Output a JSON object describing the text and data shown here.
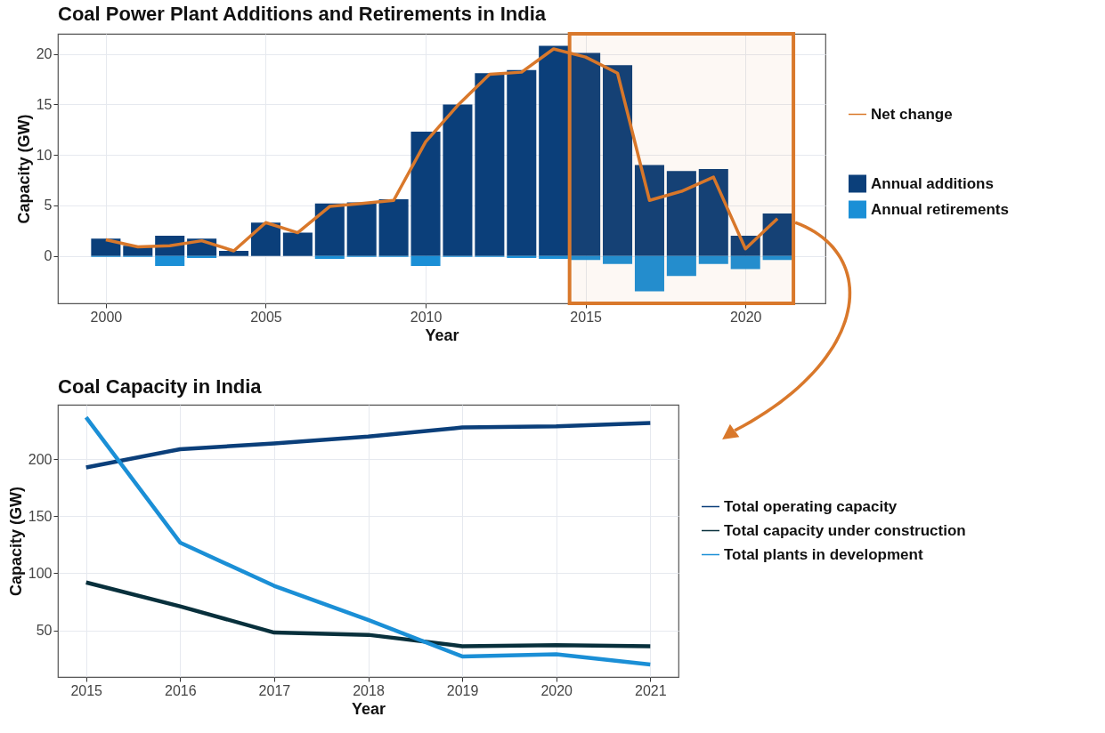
{
  "chart_data": [
    {
      "type": "bar",
      "title": "Coal Power Plant Additions and Retirements in India",
      "xlabel": "Year",
      "ylabel": "Capacity (GW)",
      "x": [
        2000,
        2001,
        2002,
        2003,
        2004,
        2005,
        2006,
        2007,
        2008,
        2009,
        2010,
        2011,
        2012,
        2013,
        2014,
        2015,
        2016,
        2017,
        2018,
        2019,
        2020,
        2021
      ],
      "series": [
        {
          "name": "Annual additions",
          "color": "#0b3f7a",
          "values": [
            1.7,
            1.0,
            2.0,
            1.7,
            0.5,
            3.3,
            2.3,
            5.2,
            5.3,
            5.6,
            12.3,
            15.0,
            18.1,
            18.4,
            20.8,
            20.1,
            18.9,
            9.0,
            8.4,
            8.6,
            2.0,
            4.2
          ]
        },
        {
          "name": "Annual retirements",
          "color": "#1b8fd6",
          "values": [
            -0.1,
            -0.1,
            -1.0,
            -0.2,
            0,
            0,
            0,
            -0.3,
            -0.1,
            -0.1,
            -1.0,
            -0.1,
            -0.1,
            -0.2,
            -0.3,
            -0.4,
            -0.8,
            -3.5,
            -2.0,
            -0.8,
            -1.3,
            -0.4
          ]
        },
        {
          "name": "Net change",
          "type": "line",
          "color": "#d9782b",
          "values": [
            1.6,
            0.9,
            1.0,
            1.5,
            0.5,
            3.3,
            2.3,
            4.9,
            5.2,
            5.5,
            11.3,
            14.9,
            18.0,
            18.2,
            20.5,
            19.7,
            18.1,
            5.5,
            6.4,
            7.8,
            0.7,
            3.7
          ]
        }
      ],
      "stacked": true,
      "xlim": [
        1998.5,
        2022.5
      ],
      "xticks": [
        2000,
        2005,
        2010,
        2015,
        2020
      ],
      "ylim": [
        -4.7,
        22.0
      ],
      "yticks": [
        0,
        5,
        10,
        15,
        20
      ],
      "bands": [
        {
          "axis": "x",
          "from": 2014.5,
          "to": 2021.5,
          "color": "#d9782b"
        }
      ],
      "grid": true,
      "legend": "right"
    },
    {
      "type": "line",
      "title": "Coal Capacity in India",
      "xlabel": "Year",
      "ylabel": "Capacity (GW)",
      "x": [
        2015,
        2016,
        2017,
        2018,
        2019,
        2020,
        2021
      ],
      "series": [
        {
          "name": "Total operating capacity",
          "color": "#0b3f7a",
          "values": [
            193,
            209,
            214,
            220,
            228,
            229,
            232
          ]
        },
        {
          "name": "Total capacity under construction",
          "color": "#08303c",
          "values": [
            92,
            71,
            48,
            46,
            36,
            37,
            36
          ]
        },
        {
          "name": "Total plants in development",
          "color": "#1b8fd6",
          "values": [
            237,
            127,
            89,
            59,
            27,
            29,
            20
          ]
        }
      ],
      "xlim": [
        2014.7,
        2021.3
      ],
      "xticks": [
        2015,
        2016,
        2017,
        2018,
        2019,
        2020,
        2021
      ],
      "ylim": [
        9,
        248
      ],
      "yticks": [
        50,
        100,
        150,
        200
      ],
      "grid": true,
      "legend": "right"
    }
  ]
}
